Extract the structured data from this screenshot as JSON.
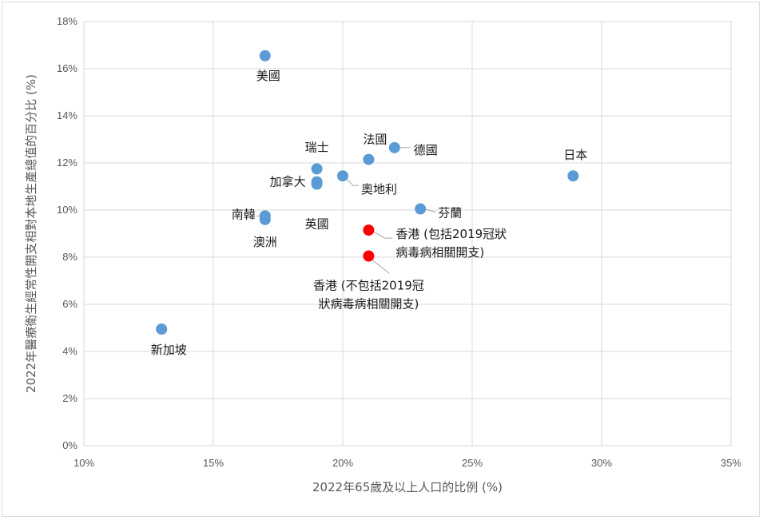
{
  "chart_data": {
    "type": "scatter",
    "title": "",
    "xlabel": "2022年65歲及以上人口的比例 (%)",
    "ylabel": "2022年醫療衛生經常性開支相對本地生產總值的百分比 (%)",
    "xlim": [
      10,
      35
    ],
    "ylim": [
      0,
      18
    ],
    "x_ticks": [
      10,
      15,
      20,
      25,
      30,
      35
    ],
    "y_ticks": [
      0,
      2,
      4,
      6,
      8,
      10,
      12,
      14,
      16,
      18
    ],
    "tick_suffix": "%",
    "grid": true,
    "colors": {
      "default": "#5b9bd5",
      "highlight": "#ff0000"
    },
    "points": [
      {
        "lines": [
          "美國"
        ],
        "x": 17.0,
        "y": 16.55,
        "color": "#5b9bd5"
      },
      {
        "lines": [
          "瑞士"
        ],
        "x": 19.0,
        "y": 11.75,
        "color": "#5b9bd5"
      },
      {
        "lines": [
          "法國"
        ],
        "x": 21.0,
        "y": 12.15,
        "color": "#5b9bd5"
      },
      {
        "lines": [
          "德國"
        ],
        "x": 22.0,
        "y": 12.65,
        "color": "#5b9bd5"
      },
      {
        "lines": [
          "日本"
        ],
        "x": 28.9,
        "y": 11.45,
        "color": "#5b9bd5"
      },
      {
        "lines": [
          "加拿大"
        ],
        "x": 19.0,
        "y": 11.2,
        "color": "#5b9bd5"
      },
      {
        "lines": [
          "英國"
        ],
        "x": 19.0,
        "y": 11.1,
        "color": "#5b9bd5"
      },
      {
        "lines": [
          "奧地利"
        ],
        "x": 20.0,
        "y": 11.45,
        "color": "#5b9bd5"
      },
      {
        "lines": [
          "南韓"
        ],
        "x": 17.0,
        "y": 9.75,
        "color": "#5b9bd5"
      },
      {
        "lines": [
          "澳洲"
        ],
        "x": 17.0,
        "y": 9.6,
        "color": "#5b9bd5"
      },
      {
        "lines": [
          "芬蘭"
        ],
        "x": 23.0,
        "y": 10.05,
        "color": "#5b9bd5"
      },
      {
        "lines": [
          "香港 (包括2019冠狀",
          "病毒病相關開支)"
        ],
        "x": 21.0,
        "y": 9.15,
        "color": "#ff0000"
      },
      {
        "lines": [
          "香港 (不包括2019冠",
          "狀病毒病相關開支)"
        ],
        "x": 21.0,
        "y": 8.05,
        "color": "#ff0000"
      },
      {
        "lines": [
          "新加坡"
        ],
        "x": 13.0,
        "y": 4.95,
        "color": "#5b9bd5"
      }
    ]
  }
}
